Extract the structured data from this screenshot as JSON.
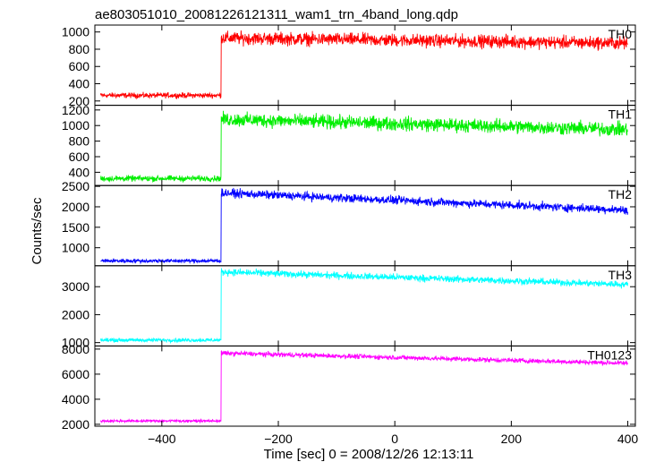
{
  "chart_data": {
    "type": "line",
    "title": "ae803051010_20081226121311_wam1_trn_4band_long.qdp",
    "xlabel": "Time [sec] 0 = 2008/12/26 12:13:11",
    "ylabel": "Counts/sec",
    "xlim": [
      -515,
      413
    ],
    "x_ticks": [
      -400,
      -200,
      0,
      200,
      400
    ],
    "x_tick_labels": [
      "−400",
      "−200",
      "0",
      "200",
      "400"
    ],
    "x_start": -505,
    "x_step": 0.5,
    "x_end": 400,
    "trigger_time": -298,
    "panels": [
      {
        "name": "TH0",
        "color": "#ff0000",
        "ylim": [
          150,
          1080
        ],
        "y_ticks": [
          200,
          400,
          600,
          800,
          1000
        ],
        "pre_level": 265,
        "pre_noise": 45,
        "post_start": 930,
        "post_end": 870,
        "post_noise": 110
      },
      {
        "name": "TH1",
        "color": "#00ee00",
        "ylim": [
          230,
          1260
        ],
        "y_ticks": [
          400,
          600,
          800,
          1000,
          1200
        ],
        "pre_level": 320,
        "pre_noise": 55,
        "post_start": 1080,
        "post_end": 950,
        "post_noise": 130
      },
      {
        "name": "TH2",
        "color": "#0000ff",
        "ylim": [
          560,
          2520
        ],
        "y_ticks": [
          1000,
          1500,
          2000,
          2500
        ],
        "pre_level": 680,
        "pre_noise": 70,
        "post_start": 2340,
        "post_end": 1920,
        "post_noise": 150
      },
      {
        "name": "TH3",
        "color": "#00ffff",
        "ylim": [
          880,
          3750
        ],
        "y_ticks": [
          1000,
          2000,
          3000
        ],
        "pre_level": 1090,
        "pre_noise": 100,
        "post_start": 3530,
        "post_end": 3080,
        "post_noise": 180
      },
      {
        "name": "TH0123",
        "color": "#ff00ff",
        "ylim": [
          1850,
          8250
        ],
        "y_ticks": [
          2000,
          4000,
          6000,
          8000
        ],
        "pre_level": 2270,
        "pre_noise": 150,
        "post_start": 7680,
        "post_end": 6870,
        "post_noise": 280
      }
    ]
  }
}
